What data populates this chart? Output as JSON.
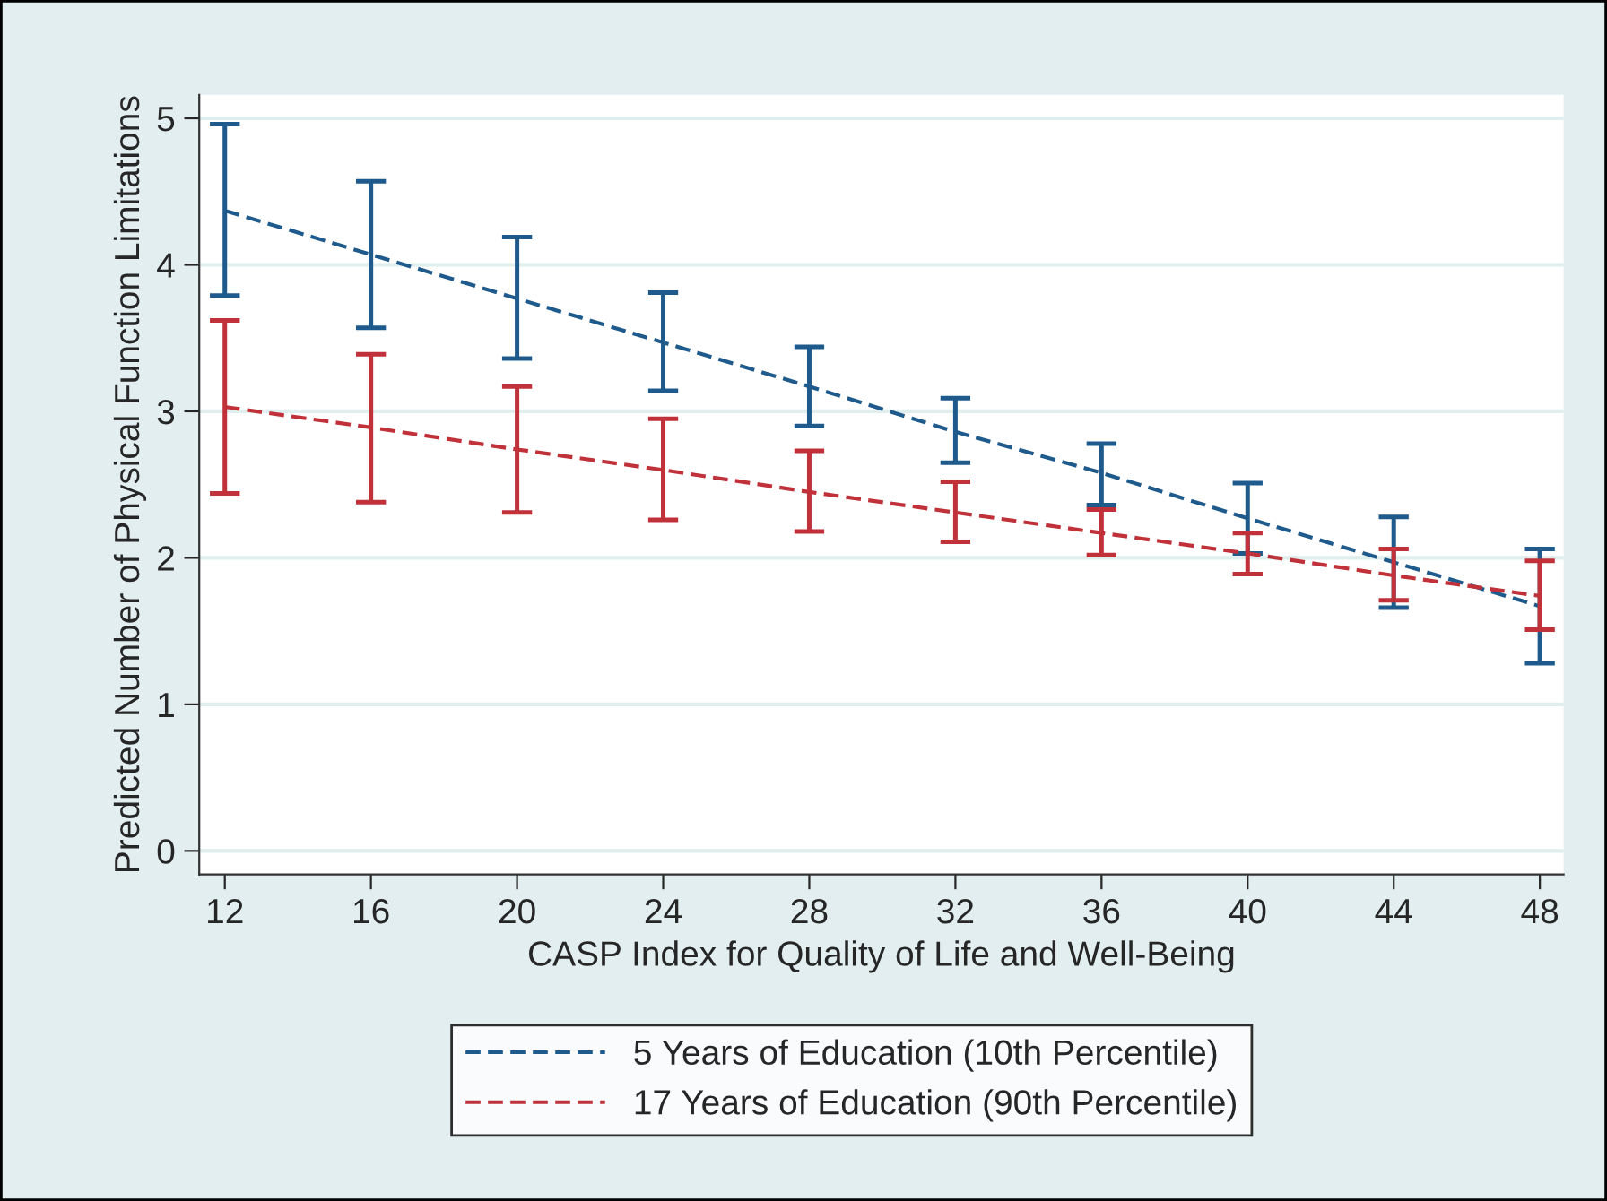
{
  "chart_data": {
    "type": "line",
    "xlabel": "CASP Index for Quality of Life and Well-Being",
    "ylabel": "Predicted Number of Physical Function Limitations",
    "x": [
      12,
      16,
      20,
      24,
      28,
      32,
      36,
      40,
      44,
      48
    ],
    "series": [
      {
        "name": "5 Years of Education (10th Percentile)",
        "color": "#1f5a8c",
        "values": [
          4.37,
          4.07,
          3.77,
          3.47,
          3.17,
          2.86,
          2.58,
          2.27,
          1.97,
          1.67
        ],
        "errors": [
          [
            3.79,
            4.96
          ],
          [
            3.57,
            4.57
          ],
          [
            3.36,
            4.19
          ],
          [
            3.14,
            3.81
          ],
          [
            2.9,
            3.44
          ],
          [
            2.65,
            3.09
          ],
          [
            2.36,
            2.78
          ],
          [
            2.03,
            2.51
          ],
          [
            1.66,
            2.28
          ],
          [
            1.28,
            2.06
          ]
        ]
      },
      {
        "name": "17 Years of Education (90th Percentile)",
        "color": "#c0313a",
        "values": [
          3.03,
          2.89,
          2.74,
          2.6,
          2.45,
          2.31,
          2.17,
          2.03,
          1.88,
          1.74
        ],
        "errors": [
          [
            2.44,
            3.62
          ],
          [
            2.38,
            3.39
          ],
          [
            2.31,
            3.17
          ],
          [
            2.26,
            2.95
          ],
          [
            2.18,
            2.73
          ],
          [
            2.11,
            2.52
          ],
          [
            2.02,
            2.33
          ],
          [
            1.89,
            2.17
          ],
          [
            1.71,
            2.06
          ],
          [
            1.51,
            1.98
          ]
        ]
      }
    ],
    "xlim": [
      11.3,
      48.65
    ],
    "xticks": [
      12,
      16,
      20,
      24,
      28,
      32,
      36,
      40,
      44,
      48
    ],
    "ylim": [
      -0.16,
      5.16
    ],
    "yticks": [
      0,
      1,
      2,
      3,
      4,
      5
    ],
    "grid": "y",
    "legend": "bottom",
    "marker": "none",
    "line_style": "dashed"
  }
}
